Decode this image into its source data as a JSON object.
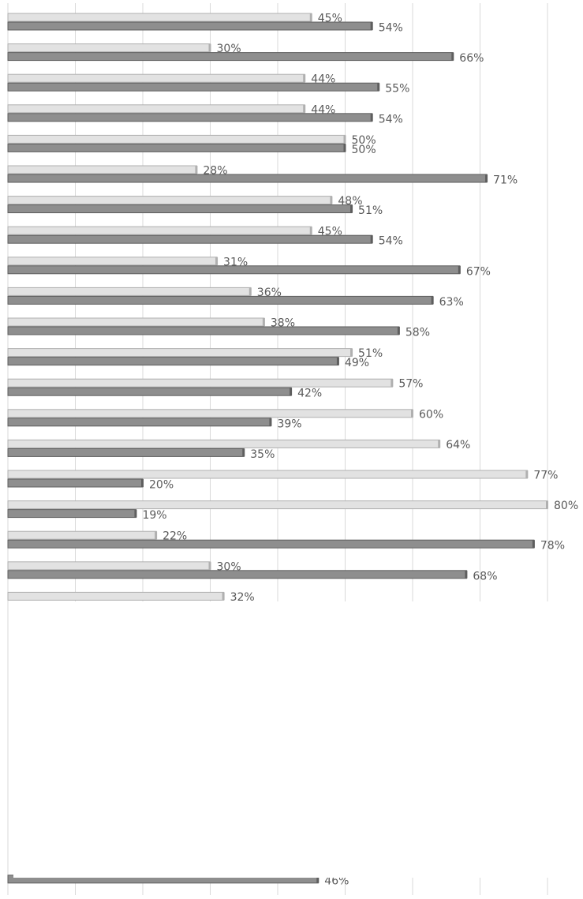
{
  "chart_data": {
    "type": "bar",
    "orientation": "horizontal",
    "categories": [
      null,
      null,
      null,
      null,
      null,
      null,
      null,
      null,
      null,
      null,
      null,
      null,
      null,
      null,
      null,
      null,
      null,
      null,
      null,
      null,
      null,
      null,
      null,
      null,
      null,
      null,
      null,
      null,
      null
    ],
    "series": [
      {
        "color": "#e2e2e2",
        "values": [
          45,
          30,
          44,
          44,
          50,
          28,
          48,
          45,
          31,
          36,
          38,
          51,
          57,
          60,
          64,
          77,
          80,
          22,
          30,
          32,
          null,
          null,
          null,
          null,
          null,
          null,
          null,
          null,
          null
        ],
        "value_labels": [
          "45%",
          "30%",
          "44%",
          "44%",
          "50%",
          "28%",
          "48%",
          "45%",
          "31%",
          "36%",
          "38%",
          "51%",
          "57%",
          "60%",
          "64%",
          "77%",
          "80%",
          "22%",
          "30%",
          "32%",
          null,
          null,
          null,
          null,
          null,
          null,
          null,
          null,
          null
        ]
      },
      {
        "color": "#8e8e8e",
        "values": [
          54,
          66,
          55,
          54,
          50,
          71,
          51,
          54,
          67,
          63,
          58,
          49,
          42,
          39,
          35,
          20,
          19,
          78,
          68,
          null,
          null,
          null,
          null,
          null,
          null,
          null,
          null,
          null,
          46
        ],
        "value_labels": [
          "54%",
          "66%",
          "55%",
          "54%",
          "50%",
          "71%",
          "51%",
          "54%",
          "67%",
          "63%",
          "58%",
          "49%",
          "42%",
          "39%",
          "35%",
          "20%",
          "19%",
          "78%",
          "68%",
          null,
          null,
          null,
          null,
          null,
          null,
          null,
          null,
          null,
          "46%"
        ]
      }
    ],
    "xlim": [
      0,
      80
    ],
    "xticks": [
      0,
      10,
      20,
      30,
      40,
      50,
      60,
      70,
      80
    ],
    "grid": true
  }
}
